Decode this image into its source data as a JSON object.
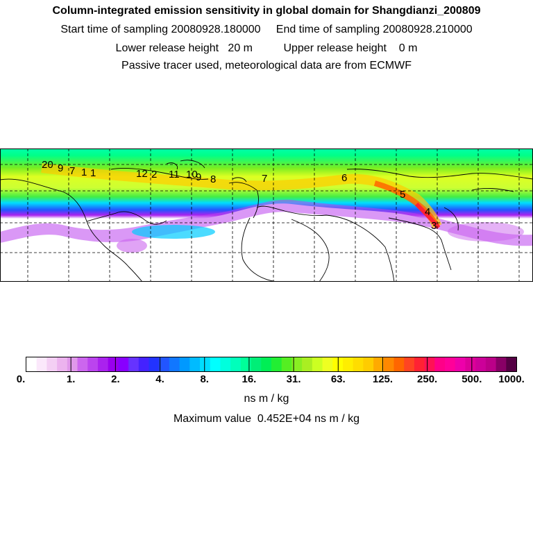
{
  "header": {
    "title": "Column-integrated emission sensitivity in global domain for Shangdianzi_200809",
    "sampling": "Start time of sampling 20080928.180000     End time of sampling 20080928.210000",
    "release": "Lower release height   20 m          Upper release height    0 m",
    "note": "Passive tracer used, meteorological data are from ECMWF"
  },
  "map": {
    "trajectory_labels": [
      "20",
      "9",
      "7",
      "1",
      "1",
      "2",
      "12",
      "11",
      "10",
      "9",
      "8",
      "7",
      "6",
      "5",
      "4",
      "3"
    ],
    "colors": {
      "land_outline": "#000000",
      "grid": "#000000",
      "background": "#ffffff"
    }
  },
  "colorbar": {
    "tick_labels": [
      "0.",
      "1.",
      "2.",
      "4.",
      "8.",
      "16.",
      "31.",
      "63.",
      "125.",
      "250.",
      "500.",
      "1000."
    ],
    "colors": [
      "#ffffff",
      "#fbe8fb",
      "#f4cff4",
      "#ecb3ee",
      "#e098ea",
      "#cc66ee",
      "#bb44ee",
      "#aa22ee",
      "#9900ee",
      "#8800ff",
      "#6633ff",
      "#4422ff",
      "#2233ff",
      "#2255ff",
      "#1177ff",
      "#0099ff",
      "#00bbff",
      "#00ddff",
      "#00ffff",
      "#00ffdd",
      "#00ffbb",
      "#00ff99",
      "#00ee77",
      "#00ee55",
      "#22ee33",
      "#55ee22",
      "#88ee22",
      "#aaee22",
      "#ccff22",
      "#eeff22",
      "#ffff00",
      "#ffee00",
      "#ffdd00",
      "#ffcc00",
      "#ffaa00",
      "#ff8800",
      "#ff6600",
      "#ff4422",
      "#ff2233",
      "#ff1155",
      "#ff0088",
      "#ff0099",
      "#ee00aa",
      "#dd0099",
      "#cc0099",
      "#bb0088",
      "#880066",
      "#550044"
    ],
    "unit": "ns m / kg",
    "maximum": "Maximum value  0.452E+04 ns m / kg"
  }
}
